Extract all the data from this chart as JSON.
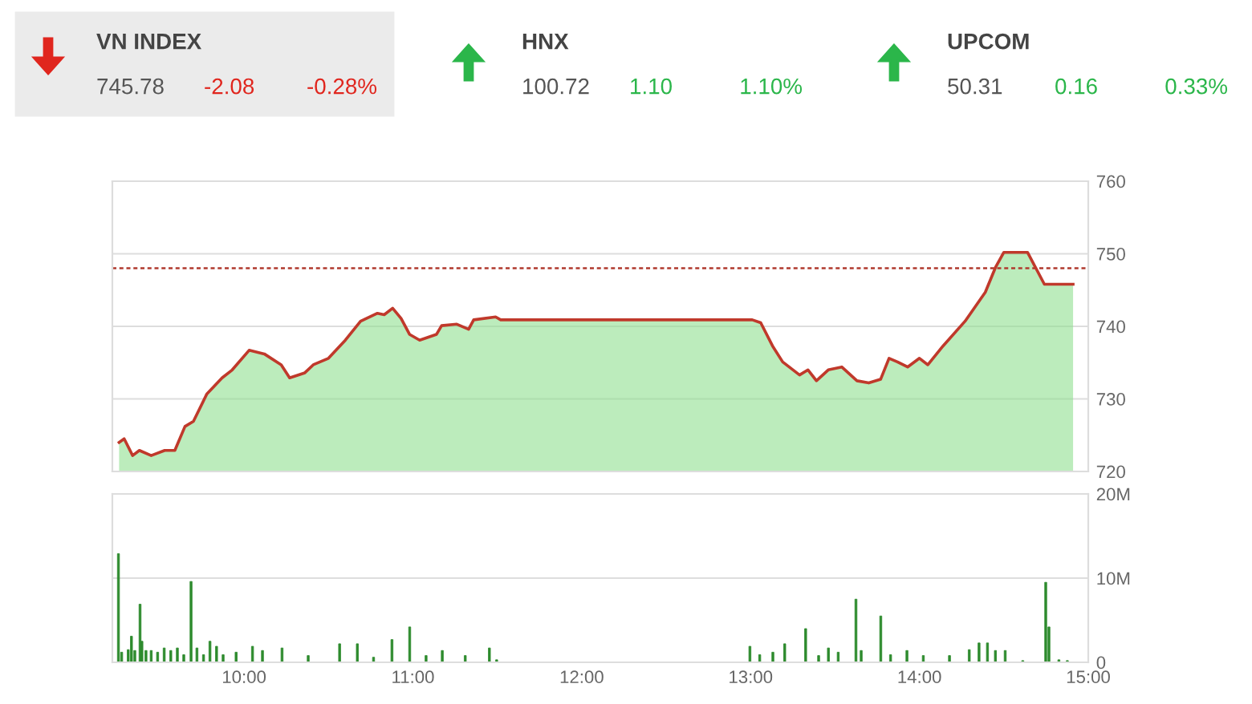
{
  "chart_data": [
    {
      "type": "other",
      "annotations": [
        "VN INDEX",
        "745.78",
        "-2.08",
        "-0.28%",
        "HNX",
        "100.72",
        "1.10",
        "1.10%",
        "UPCOM",
        "50.31",
        "0.16",
        "0.33%"
      ],
      "colors": [
        "#e0261e",
        "#2bb64a",
        "#2bb64a"
      ]
    },
    {
      "type": "area",
      "tick_labels": "y",
      "grid": "y",
      "xlim": [
        9.22,
        15.0
      ],
      "ylim": [
        720,
        760
      ],
      "yticks": [
        720,
        730,
        740,
        750,
        760
      ],
      "xticks": [
        {
          "value": 10,
          "label": null
        },
        {
          "value": 11,
          "label": null
        },
        {
          "value": 12,
          "label": null
        },
        {
          "value": 13,
          "label": null
        },
        {
          "value": 14,
          "label": null
        },
        {
          "value": 15,
          "label": null
        }
      ],
      "ref_lines": [
        {
          "axis": "y",
          "value": 748,
          "color": "#b03a2e",
          "line_style": "dashed"
        }
      ],
      "series": [
        {
          "color": "#8fe08f",
          "x": [
            9.26,
            9.29,
            9.34,
            9.38,
            9.45,
            9.53,
            9.59,
            9.65,
            9.7,
            9.78,
            9.87,
            9.93,
            10.03,
            10.12,
            10.22,
            10.27,
            10.36,
            10.41,
            10.5,
            10.6,
            10.69,
            10.79,
            10.83,
            10.88,
            10.93,
            10.98,
            11.04,
            11.14,
            11.17,
            11.26,
            11.33,
            11.36,
            11.49,
            11.52,
            13.01,
            13.06,
            13.13,
            13.19,
            13.29,
            13.34,
            13.39,
            13.46,
            13.54,
            13.63,
            13.7,
            13.77,
            13.82,
            13.87,
            13.93,
            14.0,
            14.05,
            14.14,
            14.27,
            14.39,
            14.45,
            14.5,
            14.64,
            14.74,
            14.91
          ],
          "values": [
            724.0,
            724.5,
            722.2,
            722.9,
            722.2,
            722.9,
            722.9,
            726.2,
            726.9,
            730.7,
            732.9,
            734.0,
            736.7,
            736.2,
            734.7,
            732.9,
            733.6,
            734.7,
            735.6,
            738.1,
            740.7,
            741.8,
            741.6,
            742.5,
            741.1,
            738.9,
            738.1,
            738.9,
            740.1,
            740.3,
            739.6,
            740.9,
            741.3,
            740.9,
            740.9,
            740.5,
            737.3,
            735.1,
            733.3,
            734.0,
            732.5,
            734.0,
            734.4,
            732.5,
            732.2,
            732.7,
            735.6,
            735.1,
            734.4,
            735.6,
            734.7,
            737.3,
            740.7,
            744.7,
            748.1,
            750.2,
            750.2,
            745.8,
            745.8
          ]
        },
        {
          "type": "line",
          "color": "#c0392b",
          "x": [
            9.26,
            9.29,
            9.34,
            9.38,
            9.45,
            9.53,
            9.59,
            9.65,
            9.7,
            9.78,
            9.87,
            9.93,
            10.03,
            10.12,
            10.22,
            10.27,
            10.36,
            10.41,
            10.5,
            10.6,
            10.69,
            10.79,
            10.83,
            10.88,
            10.93,
            10.98,
            11.04,
            11.14,
            11.17,
            11.26,
            11.33,
            11.36,
            11.49,
            11.52,
            13.01,
            13.06,
            13.13,
            13.19,
            13.29,
            13.34,
            13.39,
            13.46,
            13.54,
            13.63,
            13.7,
            13.77,
            13.82,
            13.87,
            13.93,
            14.0,
            14.05,
            14.14,
            14.27,
            14.39,
            14.45,
            14.5,
            14.64,
            14.74,
            14.91
          ],
          "values": [
            724.0,
            724.5,
            722.2,
            722.9,
            722.2,
            722.9,
            722.9,
            726.2,
            726.9,
            730.7,
            732.9,
            734.0,
            736.7,
            736.2,
            734.7,
            732.9,
            733.6,
            734.7,
            735.6,
            738.1,
            740.7,
            741.8,
            741.6,
            742.5,
            741.1,
            738.9,
            738.1,
            738.9,
            740.1,
            740.3,
            739.6,
            740.9,
            741.3,
            740.9,
            740.9,
            740.5,
            737.3,
            735.1,
            733.3,
            734.0,
            732.5,
            734.0,
            734.4,
            732.5,
            732.2,
            732.7,
            735.6,
            735.1,
            734.4,
            735.6,
            734.7,
            737.3,
            740.7,
            744.7,
            748.1,
            750.2,
            750.2,
            745.8,
            745.8
          ]
        }
      ]
    },
    {
      "type": "bar",
      "grid": "y",
      "xlim": [
        9.22,
        15.0
      ],
      "ylim": [
        0,
        20
      ],
      "yticks": [
        0,
        {
          "value": 10,
          "label": "10M"
        },
        {
          "value": 20,
          "label": "20M"
        }
      ],
      "xticks": [
        {
          "value": 10,
          "label": "10:00"
        },
        {
          "value": 11,
          "label": "11:00"
        },
        {
          "value": 12,
          "label": "12:00"
        },
        {
          "value": 13,
          "label": "13:00"
        },
        {
          "value": 14,
          "label": "14:00"
        },
        {
          "value": 15,
          "label": "15:00"
        }
      ],
      "series": [
        {
          "color": "#2e8b2e",
          "x": [
            9.256,
            9.275,
            9.314,
            9.333,
            9.353,
            9.384,
            9.395,
            9.419,
            9.45,
            9.488,
            9.527,
            9.566,
            9.605,
            9.643,
            9.686,
            9.721,
            9.76,
            9.798,
            9.837,
            9.876,
            9.953,
            10.05,
            10.109,
            10.225,
            10.38,
            10.566,
            10.671,
            10.767,
            10.876,
            10.981,
            11.078,
            11.174,
            11.31,
            11.453,
            11.496,
            12.996,
            13.054,
            13.132,
            13.202,
            13.326,
            13.403,
            13.461,
            13.519,
            13.624,
            13.655,
            13.771,
            13.829,
            13.926,
            14.023,
            14.178,
            14.295,
            14.353,
            14.403,
            14.45,
            14.508,
            14.612,
            14.748,
            14.767,
            14.826,
            14.876
          ],
          "values": [
            12.9,
            1.2,
            1.5,
            3.1,
            1.4,
            6.9,
            2.5,
            1.4,
            1.4,
            1.2,
            1.7,
            1.4,
            1.7,
            0.9,
            9.6,
            1.7,
            0.9,
            2.5,
            1.9,
            0.9,
            1.2,
            1.9,
            1.4,
            1.7,
            0.8,
            2.2,
            2.2,
            0.6,
            2.7,
            4.2,
            0.8,
            1.4,
            0.8,
            1.7,
            0.3,
            1.9,
            0.9,
            1.2,
            2.2,
            4.0,
            0.8,
            1.7,
            1.2,
            7.5,
            1.4,
            5.5,
            0.9,
            1.4,
            0.8,
            0.8,
            1.5,
            2.3,
            2.3,
            1.4,
            1.4,
            0.2,
            9.5,
            4.2,
            0.3,
            0.2
          ]
        }
      ]
    }
  ]
}
